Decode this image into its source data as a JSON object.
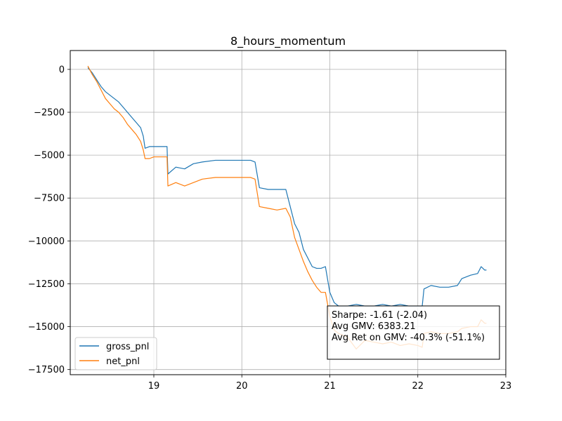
{
  "chart_data": {
    "type": "line",
    "title": "8_hours_momentum",
    "xlabel": "",
    "ylabel": "",
    "xlim": [
      18.05,
      23.0
    ],
    "ylim": [
      -17800,
      1100
    ],
    "x_ticks": [
      19,
      20,
      21,
      22,
      23
    ],
    "y_ticks": [
      0,
      -2500,
      -5000,
      -7500,
      -10000,
      -12500,
      -15000,
      -17500
    ],
    "x_tick_labels": [
      "19",
      "20",
      "21",
      "22",
      "23"
    ],
    "y_tick_labels": [
      "0",
      "−2500",
      "−5000",
      "−7500",
      "−10000",
      "−12500",
      "−15000",
      "−17500"
    ],
    "grid": true,
    "legend_position": "lower-left",
    "series": [
      {
        "name": "gross_pnl",
        "color": "#1f77b4",
        "points": [
          [
            18.25,
            100
          ],
          [
            18.3,
            -200
          ],
          [
            18.35,
            -600
          ],
          [
            18.4,
            -1000
          ],
          [
            18.45,
            -1300
          ],
          [
            18.5,
            -1500
          ],
          [
            18.55,
            -1700
          ],
          [
            18.6,
            -1900
          ],
          [
            18.65,
            -2200
          ],
          [
            18.7,
            -2500
          ],
          [
            18.75,
            -2800
          ],
          [
            18.8,
            -3100
          ],
          [
            18.85,
            -3400
          ],
          [
            18.88,
            -3900
          ],
          [
            18.9,
            -4600
          ],
          [
            18.95,
            -4500
          ],
          [
            19.0,
            -4500
          ],
          [
            19.1,
            -4500
          ],
          [
            19.15,
            -4500
          ],
          [
            19.16,
            -6100
          ],
          [
            19.25,
            -5700
          ],
          [
            19.35,
            -5800
          ],
          [
            19.45,
            -5500
          ],
          [
            19.55,
            -5400
          ],
          [
            19.7,
            -5300
          ],
          [
            19.9,
            -5300
          ],
          [
            20.1,
            -5300
          ],
          [
            20.15,
            -5400
          ],
          [
            20.2,
            -6900
          ],
          [
            20.3,
            -7000
          ],
          [
            20.4,
            -7000
          ],
          [
            20.5,
            -7000
          ],
          [
            20.55,
            -8000
          ],
          [
            20.6,
            -9000
          ],
          [
            20.65,
            -9500
          ],
          [
            20.7,
            -10500
          ],
          [
            20.75,
            -11000
          ],
          [
            20.8,
            -11500
          ],
          [
            20.85,
            -11600
          ],
          [
            20.9,
            -11600
          ],
          [
            20.95,
            -11500
          ],
          [
            21.0,
            -13000
          ],
          [
            21.05,
            -13600
          ],
          [
            21.1,
            -13800
          ],
          [
            21.2,
            -13800
          ],
          [
            21.3,
            -13700
          ],
          [
            21.4,
            -13800
          ],
          [
            21.5,
            -13800
          ],
          [
            21.6,
            -13700
          ],
          [
            21.7,
            -13800
          ],
          [
            21.8,
            -13700
          ],
          [
            21.9,
            -13800
          ],
          [
            22.0,
            -13800
          ],
          [
            22.05,
            -13800
          ],
          [
            22.07,
            -12800
          ],
          [
            22.15,
            -12600
          ],
          [
            22.25,
            -12700
          ],
          [
            22.35,
            -12700
          ],
          [
            22.45,
            -12600
          ],
          [
            22.5,
            -12200
          ],
          [
            22.6,
            -12000
          ],
          [
            22.68,
            -11900
          ],
          [
            22.72,
            -11500
          ],
          [
            22.76,
            -11700
          ],
          [
            22.78,
            -11700
          ]
        ]
      },
      {
        "name": "net_pnl",
        "color": "#ff7f0e",
        "points": [
          [
            18.25,
            200
          ],
          [
            18.3,
            -300
          ],
          [
            18.35,
            -700
          ],
          [
            18.4,
            -1200
          ],
          [
            18.45,
            -1700
          ],
          [
            18.5,
            -2000
          ],
          [
            18.55,
            -2300
          ],
          [
            18.6,
            -2500
          ],
          [
            18.65,
            -2800
          ],
          [
            18.7,
            -3200
          ],
          [
            18.75,
            -3500
          ],
          [
            18.8,
            -3800
          ],
          [
            18.85,
            -4200
          ],
          [
            18.88,
            -4700
          ],
          [
            18.9,
            -5200
          ],
          [
            18.95,
            -5200
          ],
          [
            19.0,
            -5100
          ],
          [
            19.1,
            -5100
          ],
          [
            19.15,
            -5100
          ],
          [
            19.16,
            -6800
          ],
          [
            19.25,
            -6600
          ],
          [
            19.35,
            -6800
          ],
          [
            19.45,
            -6600
          ],
          [
            19.55,
            -6400
          ],
          [
            19.7,
            -6300
          ],
          [
            19.9,
            -6300
          ],
          [
            20.1,
            -6300
          ],
          [
            20.15,
            -6400
          ],
          [
            20.2,
            -8000
          ],
          [
            20.3,
            -8100
          ],
          [
            20.4,
            -8200
          ],
          [
            20.5,
            -8100
          ],
          [
            20.55,
            -8600
          ],
          [
            20.6,
            -9800
          ],
          [
            20.65,
            -10500
          ],
          [
            20.7,
            -11200
          ],
          [
            20.75,
            -11800
          ],
          [
            20.8,
            -12300
          ],
          [
            20.85,
            -12700
          ],
          [
            20.9,
            -13000
          ],
          [
            20.95,
            -13000
          ],
          [
            21.0,
            -14400
          ],
          [
            21.05,
            -15200
          ],
          [
            21.1,
            -15400
          ],
          [
            21.2,
            -15600
          ],
          [
            21.3,
            -16300
          ],
          [
            21.4,
            -15800
          ],
          [
            21.5,
            -15900
          ],
          [
            21.6,
            -16000
          ],
          [
            21.7,
            -15900
          ],
          [
            21.8,
            -16100
          ],
          [
            21.9,
            -16000
          ],
          [
            22.0,
            -16100
          ],
          [
            22.05,
            -16200
          ],
          [
            22.07,
            -15400
          ],
          [
            22.15,
            -15300
          ],
          [
            22.25,
            -15400
          ],
          [
            22.35,
            -15400
          ],
          [
            22.45,
            -15300
          ],
          [
            22.5,
            -15100
          ],
          [
            22.6,
            -15000
          ],
          [
            22.68,
            -15000
          ],
          [
            22.72,
            -14600
          ],
          [
            22.76,
            -14800
          ],
          [
            22.78,
            -14800
          ]
        ]
      }
    ],
    "annotations": [
      "Sharpe: -1.61 (-2.04)",
      "Avg GMV: 6383.21",
      "Avg Ret on GMV: -40.3% (-51.1%)"
    ]
  }
}
